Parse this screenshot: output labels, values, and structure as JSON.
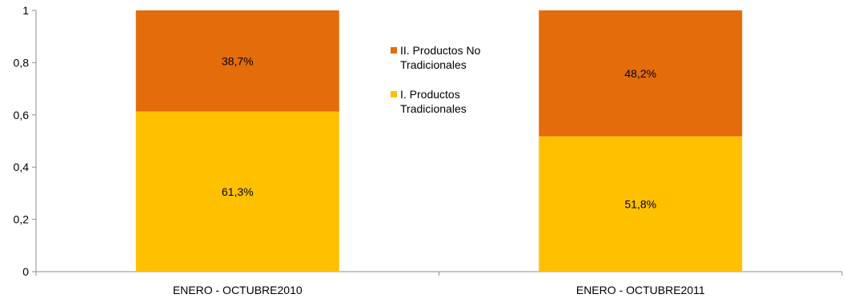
{
  "chart_data": {
    "type": "bar",
    "stacked": true,
    "categories": [
      "ENERO - OCTUBRE2010",
      "ENERO - OCTUBRE2011"
    ],
    "series": [
      {
        "name": "I. Productos Tradicionales",
        "values": [
          0.613,
          0.518
        ],
        "labels": [
          "61,3%",
          "51,8%"
        ],
        "color": "#FFC000"
      },
      {
        "name": "II. Productos No Tradicionales",
        "values": [
          0.387,
          0.482
        ],
        "labels": [
          "38,7%",
          "48,2%"
        ],
        "color": "#E46C0A"
      }
    ],
    "ylim": [
      0,
      1
    ],
    "yticks": [
      0,
      0.2,
      0.4,
      0.6,
      0.8,
      1
    ],
    "ytick_labels": [
      "0",
      "0,2",
      "0,4",
      "0,6",
      "0,8",
      "1"
    ],
    "legend": {
      "placement": "center-top",
      "entries": [
        {
          "lines": [
            "II. Productos No",
            "Tradicionales"
          ],
          "color": "#E46C0A"
        },
        {
          "lines": [
            "I. Productos",
            "Tradicionales"
          ],
          "color": "#FFC000"
        }
      ]
    },
    "grid": false,
    "title": "",
    "xlabel": "",
    "ylabel": ""
  }
}
